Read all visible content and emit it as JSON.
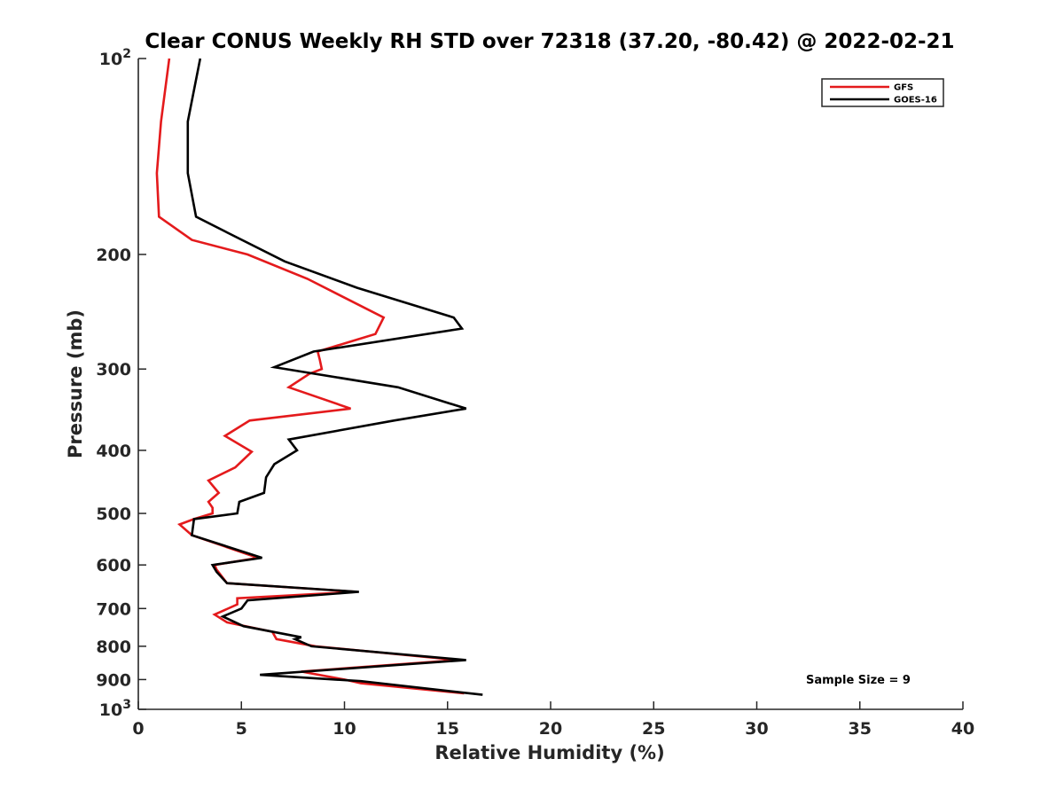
{
  "chart_data": {
    "type": "line",
    "title": "Clear CONUS Weekly RH STD over 72318 (37.20, -80.42) @ 2022-02-21",
    "xlabel": "Relative Humidity (%)",
    "ylabel": "Pressure (mb)",
    "xlim": [
      0,
      40
    ],
    "ylim": [
      100,
      1000
    ],
    "y_scale": "log",
    "y_reversed": true,
    "x_ticks": [
      "0",
      "5",
      "10",
      "15",
      "20",
      "25",
      "30",
      "35",
      "40"
    ],
    "y_ticks": [
      {
        "value": 100,
        "label": "10",
        "sup": "2"
      },
      {
        "value": 200,
        "label": "200",
        "sup": ""
      },
      {
        "value": 300,
        "label": "300",
        "sup": ""
      },
      {
        "value": 400,
        "label": "400",
        "sup": ""
      },
      {
        "value": 500,
        "label": "500",
        "sup": ""
      },
      {
        "value": 600,
        "label": "600",
        "sup": ""
      },
      {
        "value": 700,
        "label": "700",
        "sup": ""
      },
      {
        "value": 800,
        "label": "800",
        "sup": ""
      },
      {
        "value": 900,
        "label": "900",
        "sup": ""
      },
      {
        "value": 1000,
        "label": "10",
        "sup": "3"
      }
    ],
    "grid": false,
    "legend_position": "top-right",
    "annotation": "Sample Size = 9",
    "series": [
      {
        "name": "GFS",
        "color": "#e41a1c",
        "points": [
          [
            1.5,
            100
          ],
          [
            1.1,
            125
          ],
          [
            0.9,
            150
          ],
          [
            1.0,
            175
          ],
          [
            2.6,
            190
          ],
          [
            5.3,
            200
          ],
          [
            8.2,
            218
          ],
          [
            11.9,
            250
          ],
          [
            11.5,
            265
          ],
          [
            8.7,
            282
          ],
          [
            8.8,
            290
          ],
          [
            8.9,
            300
          ],
          [
            8.3,
            305
          ],
          [
            7.3,
            320
          ],
          [
            10.3,
            345
          ],
          [
            5.4,
            360
          ],
          [
            4.2,
            380
          ],
          [
            5.5,
            402
          ],
          [
            4.7,
            425
          ],
          [
            3.4,
            445
          ],
          [
            3.9,
            465
          ],
          [
            3.4,
            480
          ],
          [
            3.6,
            490
          ],
          [
            3.6,
            500
          ],
          [
            2.7,
            510
          ],
          [
            2.0,
            520
          ],
          [
            2.6,
            540
          ],
          [
            5.8,
            585
          ],
          [
            3.7,
            600
          ],
          [
            3.8,
            610
          ],
          [
            4.3,
            640
          ],
          [
            10.6,
            660
          ],
          [
            4.8,
            675
          ],
          [
            4.8,
            690
          ],
          [
            3.7,
            715
          ],
          [
            4.3,
            735
          ],
          [
            6.5,
            760
          ],
          [
            6.7,
            780
          ],
          [
            8.6,
            800
          ],
          [
            15.5,
            840
          ],
          [
            7.9,
            875
          ],
          [
            10.0,
            900
          ],
          [
            10.8,
            912
          ],
          [
            15.8,
            945
          ]
        ]
      },
      {
        "name": "GOES-16",
        "color": "#000000",
        "points": [
          [
            3.0,
            100
          ],
          [
            2.4,
            125
          ],
          [
            2.4,
            150
          ],
          [
            2.8,
            175
          ],
          [
            4.3,
            185
          ],
          [
            7.1,
            205
          ],
          [
            10.6,
            225
          ],
          [
            15.3,
            250
          ],
          [
            15.7,
            260
          ],
          [
            8.5,
            282
          ],
          [
            6.6,
            298
          ],
          [
            12.6,
            320
          ],
          [
            15.9,
            345
          ],
          [
            12.4,
            360
          ],
          [
            7.3,
            385
          ],
          [
            7.7,
            400
          ],
          [
            6.6,
            420
          ],
          [
            6.2,
            440
          ],
          [
            6.1,
            465
          ],
          [
            4.9,
            480
          ],
          [
            4.8,
            500
          ],
          [
            2.7,
            510
          ],
          [
            2.6,
            540
          ],
          [
            6.0,
            585
          ],
          [
            3.6,
            600
          ],
          [
            3.8,
            615
          ],
          [
            4.3,
            640
          ],
          [
            10.7,
            660
          ],
          [
            5.3,
            680
          ],
          [
            5.0,
            700
          ],
          [
            4.1,
            720
          ],
          [
            5.1,
            745
          ],
          [
            7.9,
            775
          ],
          [
            7.6,
            780
          ],
          [
            8.4,
            800
          ],
          [
            15.9,
            840
          ],
          [
            5.9,
            885
          ],
          [
            10.8,
            905
          ],
          [
            16.7,
            950
          ]
        ]
      }
    ]
  }
}
